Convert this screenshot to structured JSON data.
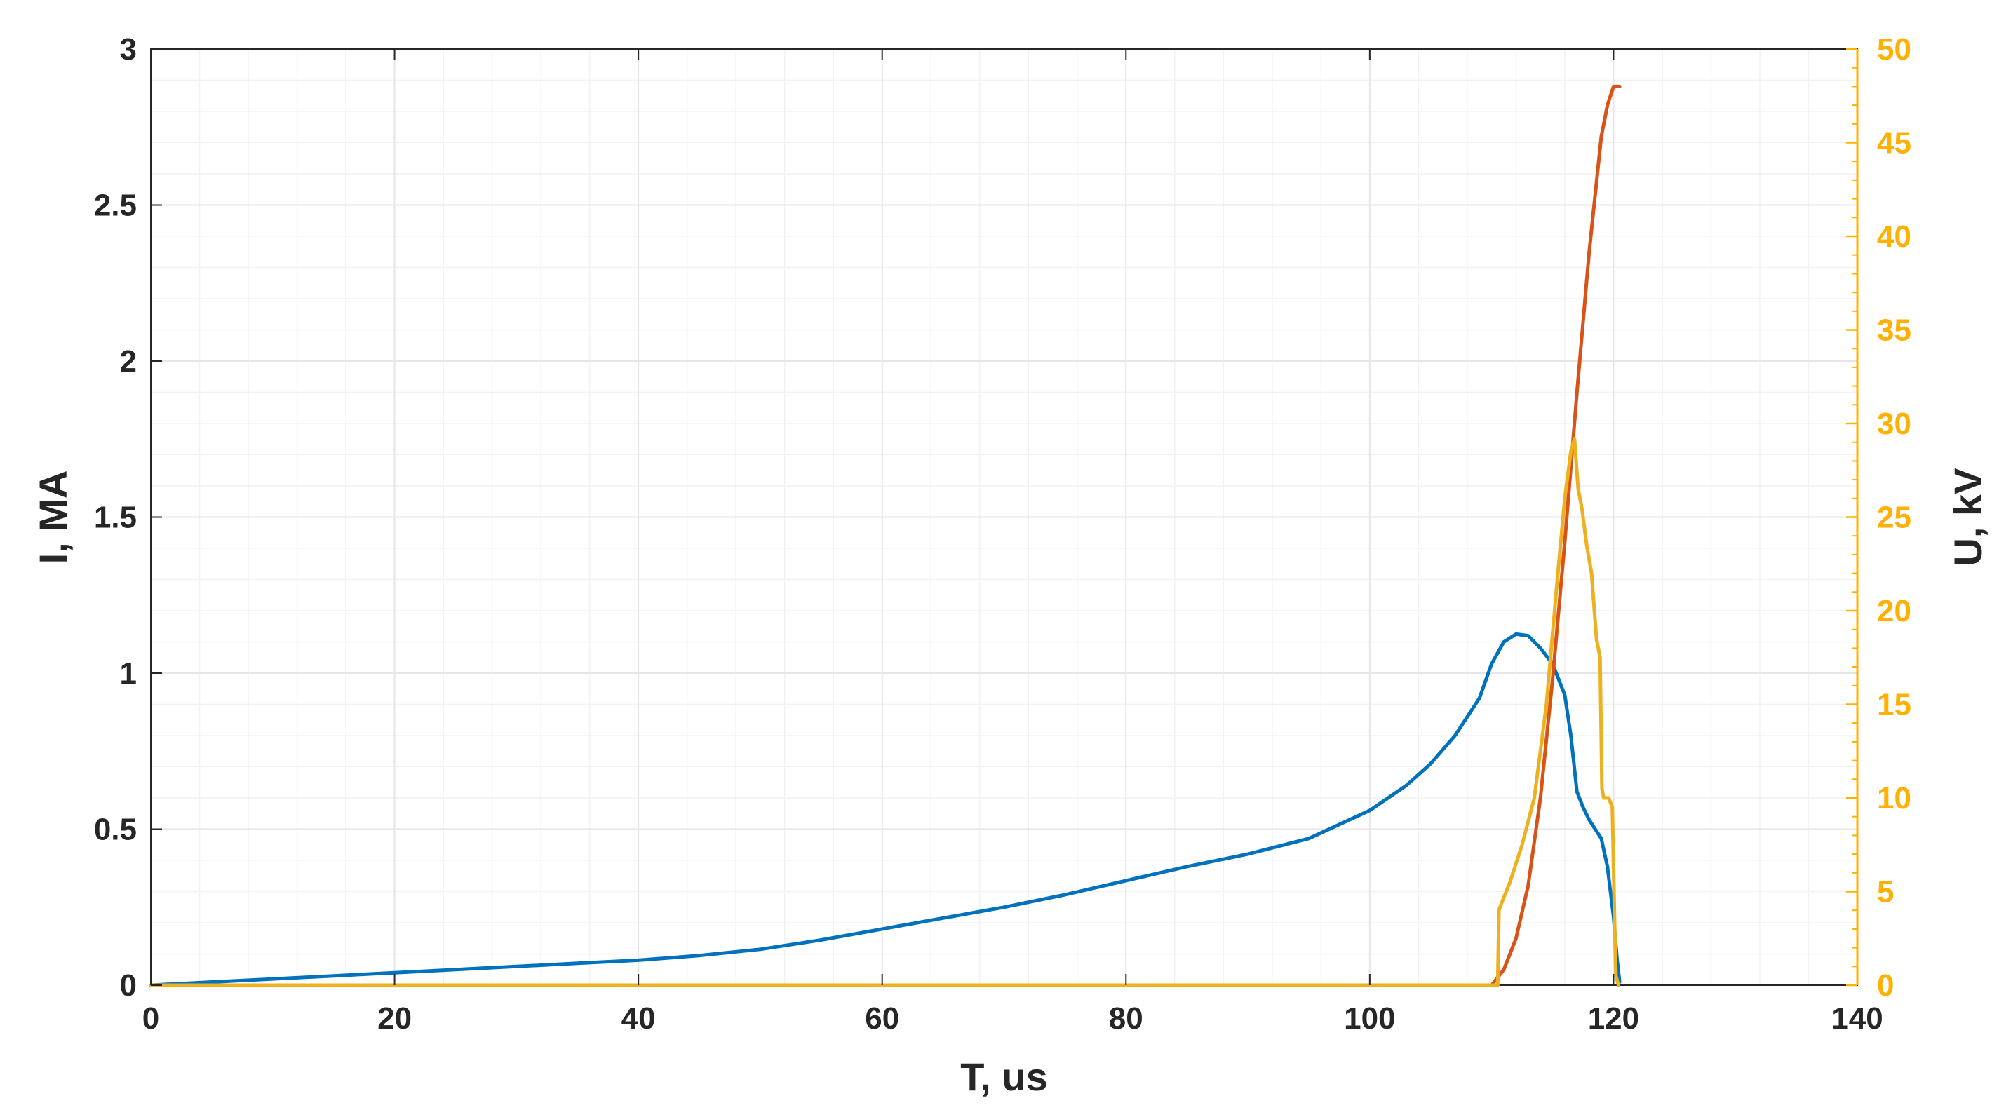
{
  "chart_data": {
    "type": "line",
    "title": "",
    "xlabel": "T, us",
    "ylabel_left": "I, MA",
    "ylabel_right": "U, kV",
    "xlim": [
      0,
      140
    ],
    "ylim_left": [
      0,
      3
    ],
    "ylim_right": [
      0,
      50
    ],
    "x_ticks": [
      "0",
      "20",
      "40",
      "60",
      "80",
      "100",
      "120",
      "140"
    ],
    "y_left_ticks": [
      "0",
      "0.5",
      "1",
      "1.5",
      "2",
      "2.5",
      "3"
    ],
    "y_right_ticks": [
      "0",
      "5",
      "10",
      "15",
      "20",
      "25",
      "30",
      "35",
      "40",
      "45",
      "50"
    ],
    "grid": true,
    "minor_grid": true,
    "colors": {
      "axis": "#262626",
      "right_axis": "#FFB000",
      "grid": "#e6e6e6",
      "minor_grid": "#f2f2f2"
    },
    "series": [
      {
        "axis": "left",
        "color": "#0072BD",
        "x": [
          0,
          5,
          10,
          15,
          20,
          25,
          30,
          35,
          40,
          45,
          50,
          55,
          60,
          65,
          70,
          75,
          80,
          85,
          90,
          95,
          100,
          103,
          105,
          107,
          109,
          110,
          111,
          112,
          113,
          114,
          115,
          116,
          116.5,
          117,
          117.5,
          118,
          119,
          119.5,
          120,
          120.3,
          120.5
        ],
        "y": [
          0,
          0.01,
          0.02,
          0.03,
          0.04,
          0.05,
          0.06,
          0.07,
          0.08,
          0.095,
          0.115,
          0.145,
          0.18,
          0.215,
          0.25,
          0.29,
          0.335,
          0.38,
          0.42,
          0.47,
          0.56,
          0.64,
          0.71,
          0.8,
          0.92,
          1.03,
          1.1,
          1.125,
          1.12,
          1.08,
          1.03,
          0.93,
          0.8,
          0.62,
          0.57,
          0.53,
          0.47,
          0.38,
          0.22,
          0.08,
          0.01
        ]
      },
      {
        "axis": "left",
        "color": "#D95319",
        "x": [
          110,
          111,
          112,
          113,
          114,
          115,
          116,
          117,
          118,
          119,
          119.5,
          120,
          120.5
        ],
        "y": [
          0,
          0.05,
          0.15,
          0.32,
          0.6,
          0.98,
          1.42,
          1.9,
          2.35,
          2.72,
          2.82,
          2.88,
          2.88
        ]
      },
      {
        "axis": "right",
        "color": "#EDB120",
        "x": [
          0,
          110.5,
          110.6,
          110.7,
          111.5,
          112.5,
          113.5,
          114.5,
          115.3,
          116,
          116.5,
          116.8,
          117.1,
          117.4,
          117.8,
          118.2,
          118.6,
          118.9,
          119.05,
          119.2,
          119.6,
          119.9,
          120.1,
          120.2,
          120.4
        ],
        "y": [
          0,
          0,
          4,
          4.2,
          5.5,
          7.5,
          10,
          15,
          21,
          26,
          28.5,
          29.2,
          26.5,
          25.5,
          23.5,
          22,
          18.5,
          17.5,
          10.5,
          10,
          10,
          9.5,
          3,
          0.5,
          0
        ]
      }
    ]
  }
}
